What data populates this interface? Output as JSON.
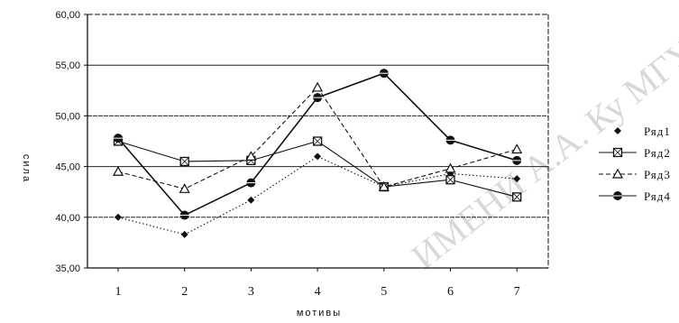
{
  "chart_data": {
    "type": "line",
    "title": "",
    "xlabel": "мотивы",
    "ylabel": "сила",
    "categories": [
      "1",
      "2",
      "3",
      "4",
      "5",
      "6",
      "7"
    ],
    "ylim": [
      35,
      60
    ],
    "yticks": [
      "35,00",
      "40,00",
      "45,00",
      "50,00",
      "55,00",
      "60,00"
    ],
    "grid": "horizontal",
    "legend_position": "right",
    "series": [
      {
        "name": "Ряд1",
        "marker": "diamond",
        "line_style": "dotted",
        "values": [
          40.0,
          38.3,
          41.7,
          46.0,
          43.0,
          44.3,
          43.8
        ]
      },
      {
        "name": "Ряд2",
        "marker": "square",
        "line_style": "solid",
        "values": [
          47.5,
          45.5,
          45.6,
          47.5,
          43.0,
          43.7,
          42.0
        ]
      },
      {
        "name": "Ряд3",
        "marker": "triangle",
        "line_style": "dashed",
        "values": [
          44.5,
          42.8,
          46.0,
          52.8,
          43.0,
          44.8,
          46.7
        ]
      },
      {
        "name": "Ряд4",
        "marker": "circle",
        "line_style": "solid",
        "values": [
          47.8,
          40.2,
          43.4,
          51.8,
          54.2,
          47.6,
          45.6
        ]
      }
    ],
    "watermark": "ИМЕНИ А.А. Ку МГУ"
  },
  "colors": {
    "ink": "#111111",
    "grid": "#222222",
    "background": "#ffffff",
    "watermark": "#b9b9b9"
  }
}
